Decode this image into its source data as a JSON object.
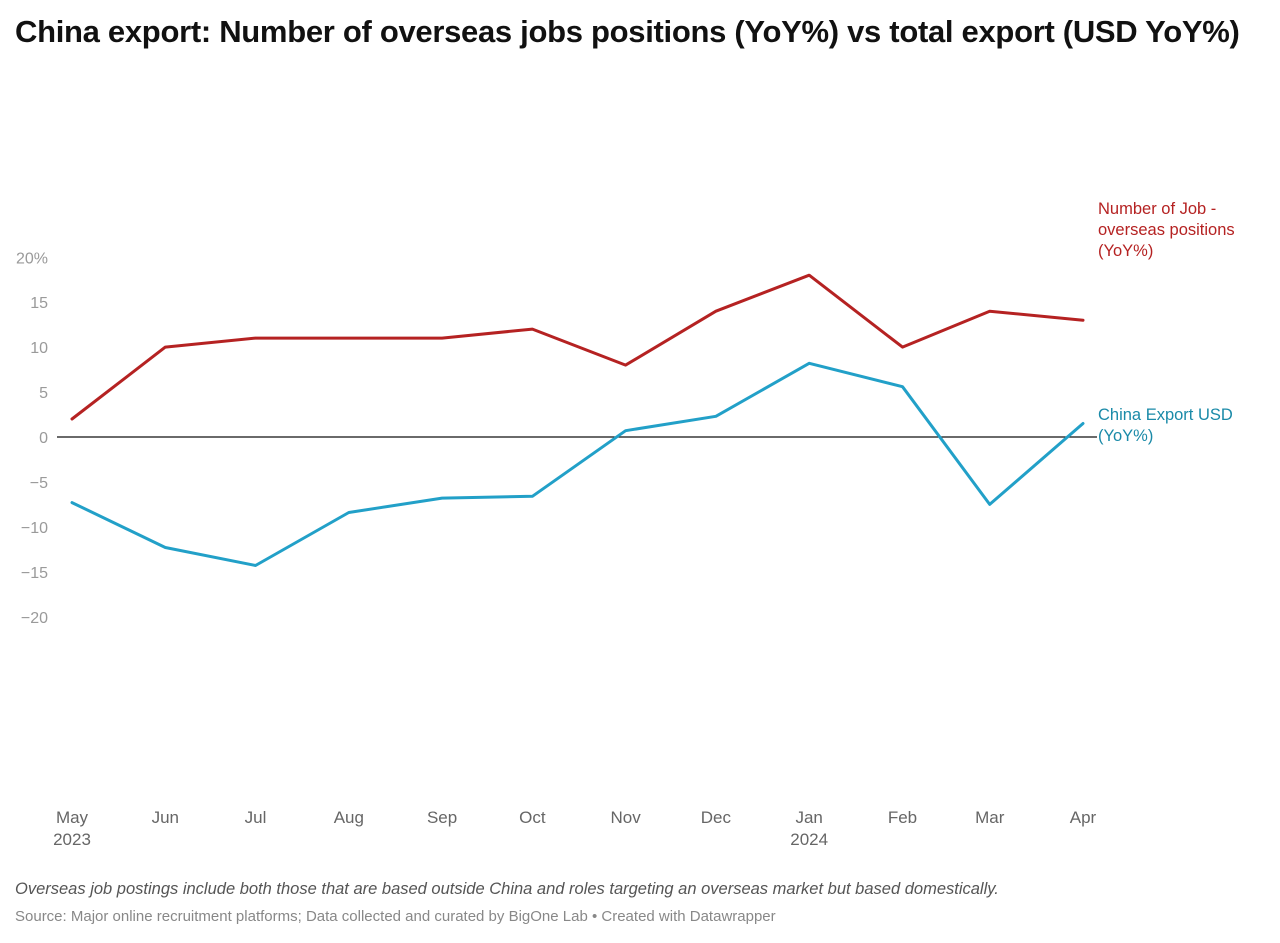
{
  "chart_data": {
    "type": "line",
    "title": "China export: Number of overseas jobs positions (YoY%) vs total export (USD YoY%)",
    "x": [
      "2023-05",
      "2023-06",
      "2023-07",
      "2023-08",
      "2023-09",
      "2023-10",
      "2023-11",
      "2023-12",
      "2024-01",
      "2024-02",
      "2024-03",
      "2024-04"
    ],
    "x_tick_labels": [
      [
        "May",
        "2023"
      ],
      [
        "Jun"
      ],
      [
        "Jul"
      ],
      [
        "Aug"
      ],
      [
        "Sep"
      ],
      [
        "Oct"
      ],
      [
        "Nov"
      ],
      [
        "Dec"
      ],
      [
        "Jan",
        "2024"
      ],
      [
        "Feb"
      ],
      [
        "Mar"
      ],
      [
        "Apr"
      ]
    ],
    "ylim": [
      -20,
      20
    ],
    "y_ticks": [
      20,
      15,
      10,
      5,
      0,
      -5,
      -10,
      -15,
      -20
    ],
    "y_tick_labels": [
      "20%",
      "15",
      "10",
      "5",
      "0",
      "−5",
      "−10",
      "−15",
      "−20"
    ],
    "grid": false,
    "zero_line": true,
    "legend": "inline labels at right end of lines",
    "series": [
      {
        "name": "Number of Job - overseas positions (YoY%)",
        "label_lines": [
          "Number of Job -",
          "overseas positions",
          "(YoY%)"
        ],
        "color": "#b52222",
        "label_color": "#b52222",
        "values": [
          2,
          10,
          11,
          11,
          11,
          12,
          8,
          14,
          18,
          10,
          14,
          13
        ]
      },
      {
        "name": "China Export USD (YoY%)",
        "label_lines": [
          "China Export USD",
          "(YoY%)"
        ],
        "color": "#22a0c8",
        "label_color": "#1a8aa8",
        "values": [
          -7.3,
          -12.3,
          -14.3,
          -8.4,
          -6.8,
          -6.6,
          0.7,
          2.3,
          8.2,
          5.6,
          -7.5,
          1.5
        ]
      }
    ]
  },
  "notes": "Overseas job postings include both those that are based outside China and roles targeting an overseas market but based domestically.",
  "source": "Source: Major online recruitment platforms; Data collected and curated by BigOne Lab • Created with Datawrapper"
}
